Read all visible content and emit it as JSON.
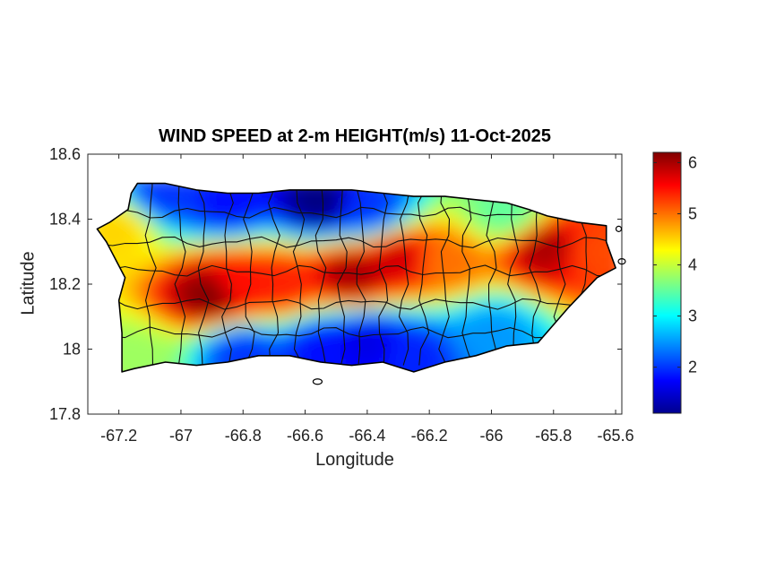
{
  "title": "WIND SPEED at 2-m HEIGHT(m/s) 11-Oct-2025",
  "xlabel": "Longitude",
  "ylabel": "Latitude",
  "chart_data": {
    "type": "heatmap",
    "title": "WIND SPEED at 2-m HEIGHT(m/s) 11-Oct-2025",
    "xlabel": "Longitude",
    "ylabel": "Latitude",
    "xlim": [
      -67.3,
      -65.58
    ],
    "ylim": [
      17.8,
      18.6
    ],
    "xticks": [
      -67.2,
      -67,
      -66.8,
      -66.6,
      -66.4,
      -66.2,
      -66,
      -65.8,
      -65.6
    ],
    "yticks": [
      17.8,
      18,
      18.2,
      18.4,
      18.6
    ],
    "colorbar": {
      "min": 1.1,
      "max": 6.2,
      "ticks": [
        2,
        3,
        4,
        5,
        6
      ],
      "colormap": "jet"
    },
    "grid": false,
    "island_outline": [
      [
        -67.14,
        18.51
      ],
      [
        -67.05,
        18.51
      ],
      [
        -66.95,
        18.49
      ],
      [
        -66.85,
        18.48
      ],
      [
        -66.75,
        18.48
      ],
      [
        -66.65,
        18.49
      ],
      [
        -66.55,
        18.49
      ],
      [
        -66.45,
        18.49
      ],
      [
        -66.35,
        18.48
      ],
      [
        -66.25,
        18.47
      ],
      [
        -66.15,
        18.47
      ],
      [
        -66.05,
        18.46
      ],
      [
        -65.95,
        18.45
      ],
      [
        -65.88,
        18.43
      ],
      [
        -65.82,
        18.41
      ],
      [
        -65.72,
        18.39
      ],
      [
        -65.63,
        18.38
      ],
      [
        -65.63,
        18.33
      ],
      [
        -65.6,
        18.25
      ],
      [
        -65.66,
        18.22
      ],
      [
        -65.7,
        18.18
      ],
      [
        -65.75,
        18.13
      ],
      [
        -65.85,
        18.02
      ],
      [
        -65.95,
        18.01
      ],
      [
        -66.05,
        17.98
      ],
      [
        -66.15,
        17.96
      ],
      [
        -66.25,
        17.93
      ],
      [
        -66.35,
        17.96
      ],
      [
        -66.45,
        17.95
      ],
      [
        -66.55,
        17.96
      ],
      [
        -66.65,
        17.98
      ],
      [
        -66.75,
        17.98
      ],
      [
        -66.85,
        17.96
      ],
      [
        -66.95,
        17.95
      ],
      [
        -67.05,
        17.96
      ],
      [
        -67.15,
        17.94
      ],
      [
        -67.19,
        17.93
      ],
      [
        -67.19,
        18.05
      ],
      [
        -67.2,
        18.15
      ],
      [
        -67.18,
        18.22
      ],
      [
        -67.24,
        18.33
      ],
      [
        -67.27,
        18.37
      ],
      [
        -67.23,
        18.39
      ],
      [
        -67.17,
        18.43
      ],
      [
        -67.16,
        18.48
      ]
    ],
    "wind_field_centers": [
      {
        "lon": -66.9,
        "lat": 18.17,
        "speed": 6.2
      },
      {
        "lon": -66.82,
        "lat": 18.2,
        "speed": 5.5
      },
      {
        "lon": -66.68,
        "lat": 18.2,
        "speed": 5.4
      },
      {
        "lon": -66.45,
        "lat": 18.23,
        "speed": 6.0
      },
      {
        "lon": -66.3,
        "lat": 18.28,
        "speed": 5.8
      },
      {
        "lon": -66.15,
        "lat": 18.27,
        "speed": 5.0
      },
      {
        "lon": -65.82,
        "lat": 18.31,
        "speed": 6.0
      },
      {
        "lon": -65.67,
        "lat": 18.3,
        "speed": 5.2
      },
      {
        "lon": -67.2,
        "lat": 18.37,
        "speed": 4.5
      },
      {
        "lon": -66.55,
        "lat": 18.45,
        "speed": 1.1
      },
      {
        "lon": -66.85,
        "lat": 18.45,
        "speed": 1.8
      },
      {
        "lon": -67.05,
        "lat": 18.47,
        "speed": 2.0
      },
      {
        "lon": -66.4,
        "lat": 18.43,
        "speed": 2.0
      },
      {
        "lon": -66.4,
        "lat": 18.02,
        "speed": 1.6
      },
      {
        "lon": -66.55,
        "lat": 18.0,
        "speed": 1.8
      },
      {
        "lon": -66.25,
        "lat": 17.98,
        "speed": 1.9
      },
      {
        "lon": -66.8,
        "lat": 17.99,
        "speed": 2.0
      },
      {
        "lon": -67.15,
        "lat": 17.97,
        "speed": 3.8
      },
      {
        "lon": -66.0,
        "lat": 18.05,
        "speed": 2.5
      },
      {
        "lon": -65.95,
        "lat": 18.42,
        "speed": 3.5
      }
    ]
  }
}
